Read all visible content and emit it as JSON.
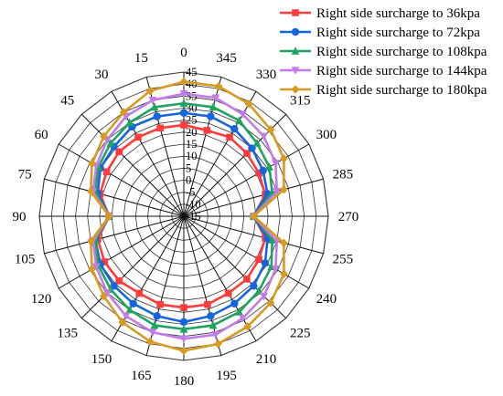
{
  "chart_data": {
    "type": "radar",
    "title": "",
    "angles": [
      0,
      15,
      30,
      45,
      60,
      75,
      90,
      105,
      120,
      135,
      150,
      165,
      180,
      195,
      210,
      225,
      240,
      255,
      270,
      285,
      300,
      315,
      330,
      345
    ],
    "angle_labels": [
      "0",
      "15",
      "30",
      "45",
      "60",
      "75",
      "90",
      "105",
      "120",
      "135",
      "150",
      "165",
      "180",
      "195",
      "210",
      "225",
      "240",
      "255",
      "270",
      "285",
      "300",
      "315",
      "330",
      "345"
    ],
    "r_range": [
      -15,
      45
    ],
    "r_ticks": [
      -15,
      -10,
      -5,
      0,
      5,
      10,
      15,
      20,
      25,
      30,
      35,
      40,
      45
    ],
    "r_tick_labels": [
      "-15",
      "-10",
      "-5",
      "0",
      "5",
      "10",
      "15",
      "20",
      "25",
      "30",
      "35",
      "40",
      "45"
    ],
    "grid": true,
    "legend_position": "top-right",
    "series": [
      {
        "name": "Right side surcharge to 36kpa",
        "color": "#ff3b3b",
        "marker": "square",
        "values": [
          23,
          23,
          23,
          23,
          22,
          21,
          16,
          22,
          23,
          23,
          22,
          23,
          23,
          23,
          22,
          22,
          21,
          20,
          14,
          20,
          21,
          22,
          23,
          22
        ]
      },
      {
        "name": "Right side surcharge to 72kpa",
        "color": "#1565e0",
        "marker": "circle",
        "values": [
          28,
          28,
          28,
          26,
          25,
          22,
          16,
          23,
          25,
          26,
          27,
          28,
          29,
          28,
          27,
          26,
          24,
          21,
          14,
          21,
          23,
          25,
          27,
          28
        ]
      },
      {
        "name": "Right side surcharge to 108kpa",
        "color": "#1fa35f",
        "marker": "triangle-up",
        "values": [
          32,
          32,
          30,
          28,
          26,
          23,
          16,
          23,
          26,
          28,
          30,
          32,
          32,
          32,
          31,
          29,
          27,
          23,
          14,
          23,
          26,
          28,
          31,
          32
        ]
      },
      {
        "name": "Right side surcharge to 144kpa",
        "color": "#c27be8",
        "marker": "triangle-down",
        "values": [
          36,
          35,
          33,
          30,
          27,
          24,
          16,
          24,
          27,
          30,
          33,
          35,
          36,
          36,
          34,
          32,
          29,
          25,
          14,
          25,
          29,
          32,
          34,
          36
        ]
      },
      {
        "name": "Right side surcharge to 180kpa",
        "color": "#d89a20",
        "marker": "diamond",
        "values": [
          41,
          39,
          35,
          32,
          29,
          25,
          16,
          25,
          29,
          32,
          36,
          39,
          41,
          40,
          38,
          36,
          33,
          28,
          14,
          28,
          33,
          36,
          39,
          41
        ]
      }
    ]
  }
}
